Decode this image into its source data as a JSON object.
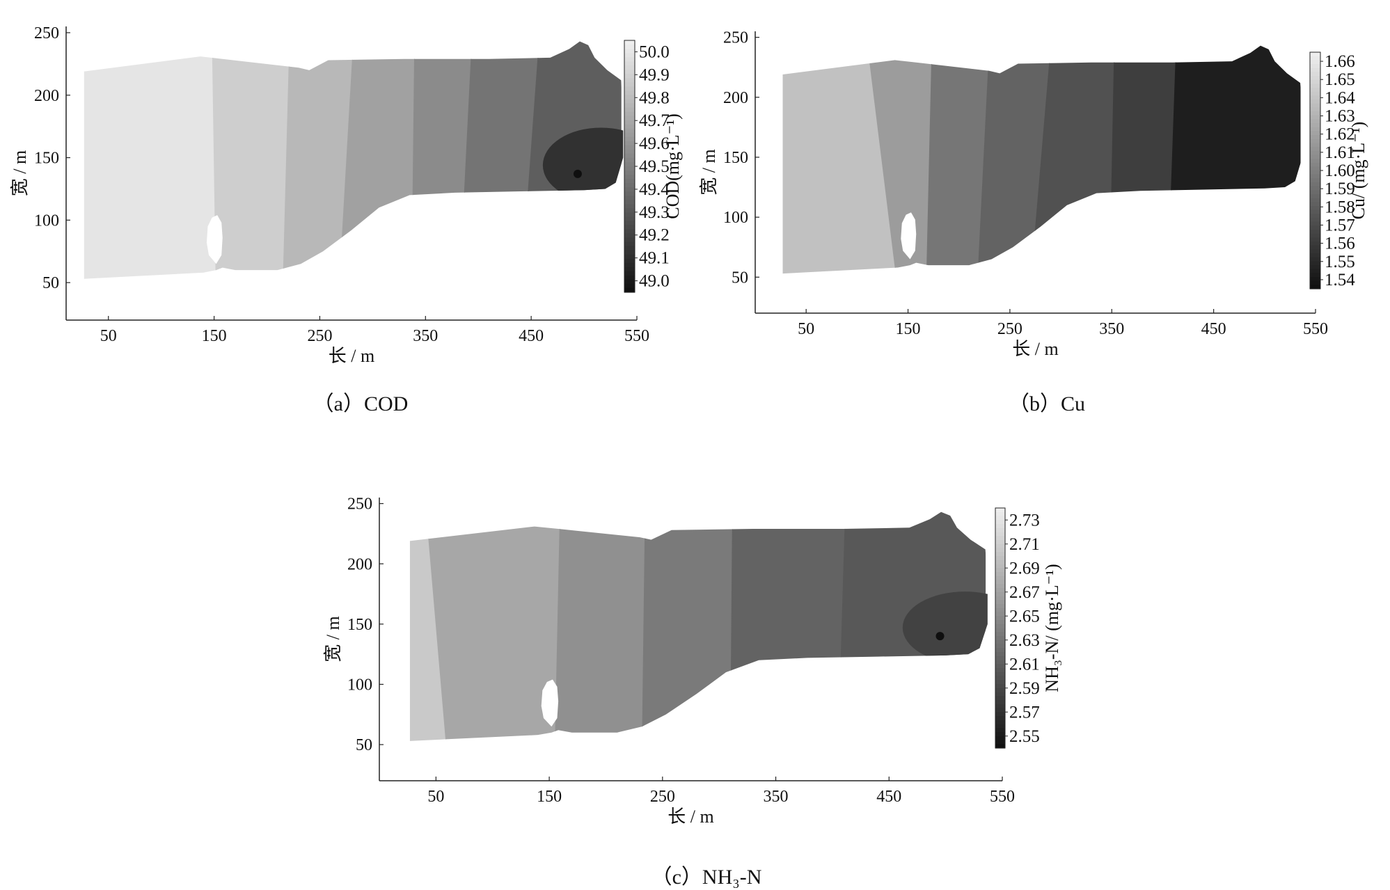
{
  "chart_data": [
    {
      "type": "heatmap",
      "caption": "（a）COD",
      "xlabel": "长 / m",
      "ylabel": "宽 / m",
      "xticks": [
        50,
        150,
        250,
        350,
        450,
        550
      ],
      "yticks": [
        50,
        100,
        150,
        200,
        250
      ],
      "xlim": [
        10,
        550
      ],
      "ylim": [
        20,
        255
      ],
      "colorbar": {
        "label": "COD(mg·L⁻¹)",
        "ticks": [
          "50.0",
          "49.9",
          "49.8",
          "49.7",
          "49.6",
          "49.5",
          "49.4",
          "49.3",
          "49.2",
          "49.1",
          "49.0"
        ],
        "range": [
          49.0,
          50.0
        ]
      },
      "bands": [
        {
          "x_top": 148,
          "x_bot": 152,
          "value": 49.95
        },
        {
          "x_top": 222,
          "x_bot": 215,
          "value": 49.85
        },
        {
          "x_top": 283,
          "x_bot": 268,
          "value": 49.75
        },
        {
          "x_top": 340,
          "x_bot": 337,
          "value": 49.65
        },
        {
          "x_top": 395,
          "x_bot": 382,
          "value": 49.55
        },
        {
          "x_top": 459,
          "x_bot": 440,
          "value": 49.45
        },
        {
          "x_top": 535,
          "x_bot": 535,
          "value": 49.35
        }
      ],
      "hotspot": {
        "x": 494,
        "y": 137,
        "value": 49.15
      }
    },
    {
      "type": "heatmap",
      "caption": "（b）Cu",
      "xlabel": "长 / m",
      "ylabel": "宽 / m",
      "xticks": [
        50,
        150,
        250,
        350,
        450,
        550
      ],
      "yticks": [
        50,
        100,
        150,
        200,
        250
      ],
      "xlim": [
        0,
        550
      ],
      "ylim": [
        20,
        255
      ],
      "colorbar": {
        "label": "Cu/ (mg·L⁻¹)",
        "ticks": [
          "1.66",
          "1.65",
          "1.64",
          "1.63",
          "1.62",
          "1.61",
          "1.60",
          "1.59",
          "1.58",
          "1.57",
          "1.56",
          "1.55",
          "1.54"
        ],
        "range": [
          1.54,
          1.66
        ]
      },
      "bands": [
        {
          "x_top": 108,
          "x_bot": 140,
          "value": 1.635
        },
        {
          "x_top": 174,
          "x_bot": 168,
          "value": 1.615
        },
        {
          "x_top": 231,
          "x_bot": 218,
          "value": 1.595
        },
        {
          "x_top": 292,
          "x_bot": 270,
          "value": 1.585
        },
        {
          "x_top": 353,
          "x_bot": 348,
          "value": 1.575
        },
        {
          "x_top": 414,
          "x_bot": 405,
          "value": 1.565
        },
        {
          "x_top": 535,
          "x_bot": 535,
          "value": 1.548
        }
      ],
      "hotspot": null
    },
    {
      "type": "heatmap",
      "caption": "（c）NH₃-N",
      "xlabel": "长 / m",
      "ylabel": "宽 / m",
      "xticks": [
        50,
        150,
        250,
        350,
        450,
        550
      ],
      "yticks": [
        50,
        100,
        150,
        200,
        250
      ],
      "xlim": [
        0,
        550
      ],
      "ylim": [
        20,
        255
      ],
      "colorbar": {
        "label": "NH₃-N/ (mg·L⁻¹)",
        "ticks": [
          "2.73",
          "2.71",
          "2.69",
          "2.67",
          "2.65",
          "2.63",
          "2.61",
          "2.59",
          "2.57",
          "2.55"
        ],
        "range": [
          2.54,
          2.74
        ]
      },
      "bands": [
        {
          "x_top": 40,
          "x_bot": 60,
          "value": 2.705
        },
        {
          "x_top": 160,
          "x_bot": 155,
          "value": 2.675
        },
        {
          "x_top": 235,
          "x_bot": 232,
          "value": 2.655
        },
        {
          "x_top": 312,
          "x_bot": 310,
          "value": 2.635
        },
        {
          "x_top": 412,
          "x_bot": 405,
          "value": 2.615
        },
        {
          "x_top": 535,
          "x_bot": 535,
          "value": 2.605
        }
      ],
      "hotspot": {
        "x": 495,
        "y": 140,
        "value": 2.585
      }
    }
  ]
}
